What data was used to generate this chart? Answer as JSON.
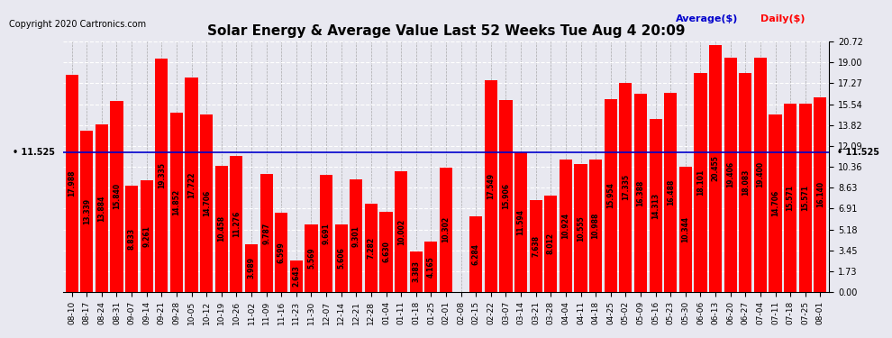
{
  "title": "Solar Energy & Average Value Last 52 Weeks Tue Aug 4 20:09",
  "copyright": "Copyright 2020 Cartronics.com",
  "avg_label": "Average($)",
  "daily_label": "Daily($)",
  "average_line": 11.525,
  "avg_annotation": "• 11.525",
  "bar_color": "#ff0000",
  "avg_line_color": "#0000cc",
  "avg_text_color": "#0000cc",
  "daily_text_color": "#ff0000",
  "background_color": "#e8e8f0",
  "yticks": [
    0.0,
    1.73,
    3.45,
    5.18,
    6.91,
    8.63,
    10.36,
    12.09,
    13.82,
    15.54,
    17.27,
    19.0,
    20.72
  ],
  "categories": [
    "08-10",
    "08-17",
    "08-24",
    "08-31",
    "09-07",
    "09-14",
    "09-21",
    "09-28",
    "10-05",
    "10-12",
    "10-19",
    "10-26",
    "11-02",
    "11-09",
    "11-16",
    "11-23",
    "11-30",
    "12-07",
    "12-14",
    "12-21",
    "12-28",
    "01-04",
    "01-11",
    "01-18",
    "01-25",
    "02-01",
    "02-08",
    "02-15",
    "02-22",
    "03-07",
    "03-14",
    "03-21",
    "03-28",
    "04-04",
    "04-11",
    "04-18",
    "04-25",
    "05-02",
    "05-09",
    "05-16",
    "05-23",
    "05-30",
    "06-06",
    "06-13",
    "06-20",
    "06-27",
    "07-04",
    "07-11",
    "07-18",
    "07-25",
    "08-01"
  ],
  "values": [
    17.988,
    13.339,
    13.884,
    15.84,
    8.833,
    9.261,
    19.335,
    14.852,
    17.722,
    14.706,
    10.458,
    11.276,
    3.989,
    9.787,
    6.599,
    2.643,
    5.569,
    9.691,
    5.606,
    9.301,
    7.282,
    6.63,
    10.002,
    3.383,
    4.165,
    10.302,
    0.008,
    6.284,
    17.549,
    15.906,
    11.594,
    7.638,
    8.012,
    10.924,
    10.555,
    10.988,
    15.954,
    17.335,
    16.388,
    14.313,
    16.488,
    10.344,
    18.101,
    20.455,
    19.406,
    18.083,
    19.4,
    14.706,
    15.571,
    15.571,
    16.14
  ]
}
